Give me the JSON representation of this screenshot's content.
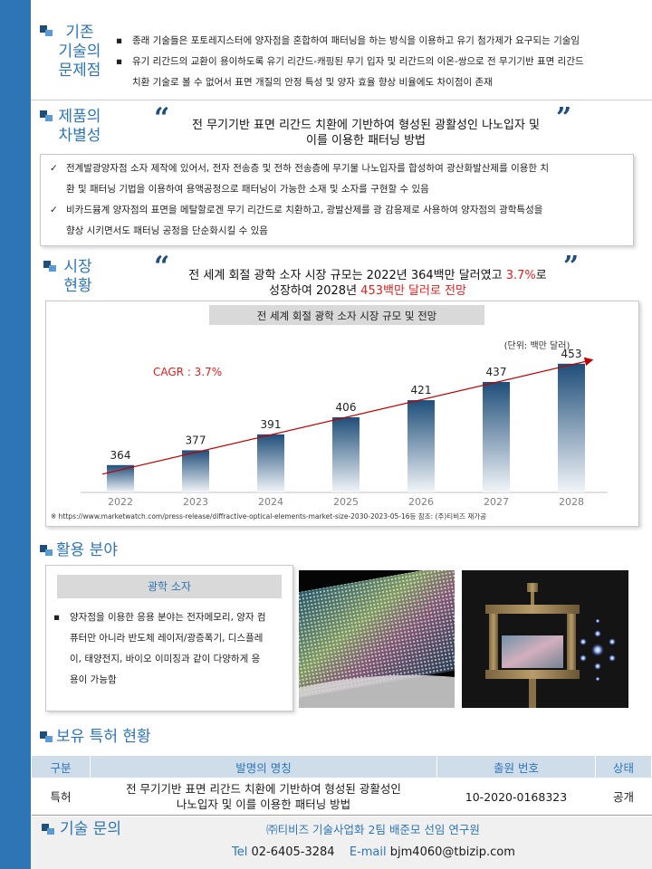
{
  "problems": {
    "title_lines": [
      "기존",
      "기술의",
      "문제점"
    ],
    "bullets": [
      [
        "종래 기술들은 포토레지스터에 양자점을 혼합하여 패터닝을 하는 방식을 이용하고 유기 첨가제가 요구되는 기술임"
      ],
      [
        "유기 리간드의 교환이 용이하도록 유기 리간드-캐핑된 무기 입자 및 리간드의 이온-쌍으로 전 무기기반 표면 리간드",
        "치환 기술로 볼 수 없어서 표면 개질의 안정 특성 및 양자 효율 향상 비율에도 차이점이 존재"
      ]
    ]
  },
  "differentiation": {
    "title_lines": [
      "제품의",
      "차별성"
    ],
    "quote_lines": [
      "전 무기기반 표면 리간드 치환에 기반하여 형성된 광활성인 나노입자 및",
      "이를 이용한 패터닝 방법"
    ],
    "checks": [
      [
        "전계발광양자점 소자 제작에 있어서, 전자 전송층 및 전하 전송층에 무기물 나노입자를 합성하여 광산화발산제를 이용한 치",
        "환 및 패터닝 기법을 이용하여 용액공정으로 패터닝이 가능한 소재 및 소자를 구현할 수 있음"
      ],
      [
        "비카드뮴계 양자점의 표면을 메탈할로겐 무기 리간드로 치환하고, 광발산제를 광 감응제로 사용하여 양자점의 광학특성을",
        "향상 시키면서도 패터닝 공정을 단순화시킬 수 있음"
      ]
    ]
  },
  "market": {
    "title_lines": [
      "시장",
      "현황"
    ],
    "quote_line1_pre": "전 세계 회절 광학 소자 시장 규모는 2022년 364백만 달러였고 ",
    "quote_line1_red": "3.7%",
    "quote_line1_post": "로",
    "quote_line2_pre": "성장하여 2028년 ",
    "quote_line2_red": "453백만 달러로 전망",
    "source": "※ https://www.marketwatch.com/press-release/diffractive-optical-elements-market-size-2030-2023-05-16등 참조: (주)티비즈 재가공"
  },
  "chart_data": {
    "type": "bar",
    "title": "전 세계 회절 광학 소자 시장 규모 및 전망",
    "unit": "(단위: 백만 달러)",
    "cagr_label": "CAGR : 3.7%",
    "categories": [
      "2022",
      "2023",
      "2024",
      "2025",
      "2026",
      "2027",
      "2028"
    ],
    "values": [
      364,
      377,
      391,
      406,
      421,
      437,
      453
    ],
    "ylim": [
      340,
      460
    ],
    "trend_line": true,
    "colors": {
      "bar_top": "#1f4e79",
      "bar_bottom": "#f2f5f9",
      "trend": "#c00000",
      "cagr": "#e02020"
    }
  },
  "applications": {
    "title": "활용 분야",
    "card_title": "광학 소자",
    "bullet": [
      "양자점을 이용한 응용 분야는 전자메모리, 양자 컴",
      "퓨터만 아니라 반도체 레이저/광증폭기, 디스플레",
      "이, 태양전지, 바이오 이미징과 같이 다양하게 응",
      "용이 가능함"
    ]
  },
  "patents": {
    "title": "보유 특허 현황",
    "headers": [
      "구분",
      "발명의 명칭",
      "출원 번호",
      "상태"
    ],
    "row": {
      "type": "특허",
      "name_lines": [
        "전 무기기반 표면 리간드 치환에 기반하여 형성된 광활성인",
        "나노입자 및 이를 이용한 패터닝 방법"
      ],
      "number": "10-2020-0168323",
      "status": "공개"
    }
  },
  "contact": {
    "title": "기술 문의",
    "org": "㈜티비즈 기술사업화 2팀 배준모 선임 연구원",
    "tel_label": "Tel",
    "tel": "02-6405-3284",
    "email_label": "E-mail",
    "email": "bjm4060@tbizip.com"
  },
  "colors": {
    "accent": "#2e75b6",
    "dark": "#1f4e79",
    "red": "#e02020"
  }
}
